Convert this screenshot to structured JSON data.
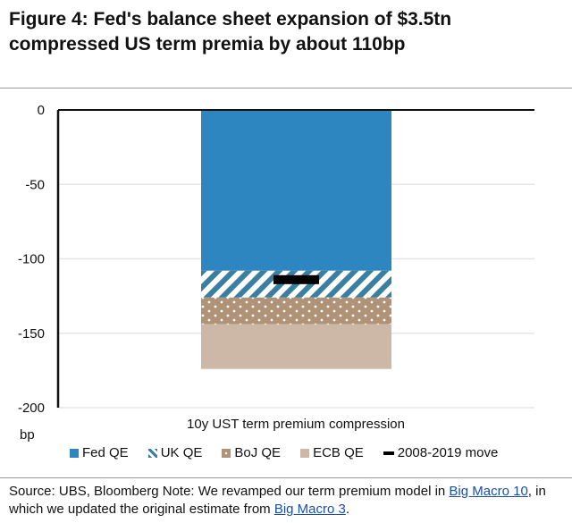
{
  "title_line1": "Figure 4:  Fed's balance sheet expansion of $3.5tn",
  "title_line2": "compressed US term premia by about 110bp",
  "chart_data": {
    "type": "bar",
    "stacked": true,
    "categories": [
      "10y UST term premium compression"
    ],
    "series": [
      {
        "name": "Fed QE",
        "values": [
          -108
        ],
        "color": "#2e86c1",
        "pattern": "solid"
      },
      {
        "name": "UK QE",
        "values": [
          -18
        ],
        "color": "#3a7fa0",
        "pattern": "diagonal-stripes"
      },
      {
        "name": "BoJ QE",
        "values": [
          -18
        ],
        "color": "#b09276",
        "pattern": "dots"
      },
      {
        "name": "ECB QE",
        "values": [
          -30
        ],
        "color": "#cdb8a8",
        "pattern": "solid"
      }
    ],
    "markers": [
      {
        "name": "2008-2019 move",
        "values": [
          -114
        ],
        "color": "#000000"
      }
    ],
    "ylim": [
      -200,
      0
    ],
    "yticks": [
      0,
      -50,
      -100,
      -150,
      -200
    ],
    "ytick_labels": [
      "0",
      "-50",
      "-100",
      "-150",
      "-200"
    ],
    "ylabel": "bp",
    "xlabel": "10y UST term premium compression",
    "grid": true,
    "legend_position": "bottom"
  },
  "legend": [
    "Fed QE",
    "UK QE",
    "BoJ QE",
    "ECB QE",
    "2008-2019 move"
  ],
  "source": {
    "prefix": "Source:  UBS, Bloomberg   Note: We revamped our term premium model in ",
    "link1": "Big Macro 10",
    "middle": ", in which we updated the original estimate from ",
    "link2": "Big Macro 3",
    "suffix": "."
  }
}
